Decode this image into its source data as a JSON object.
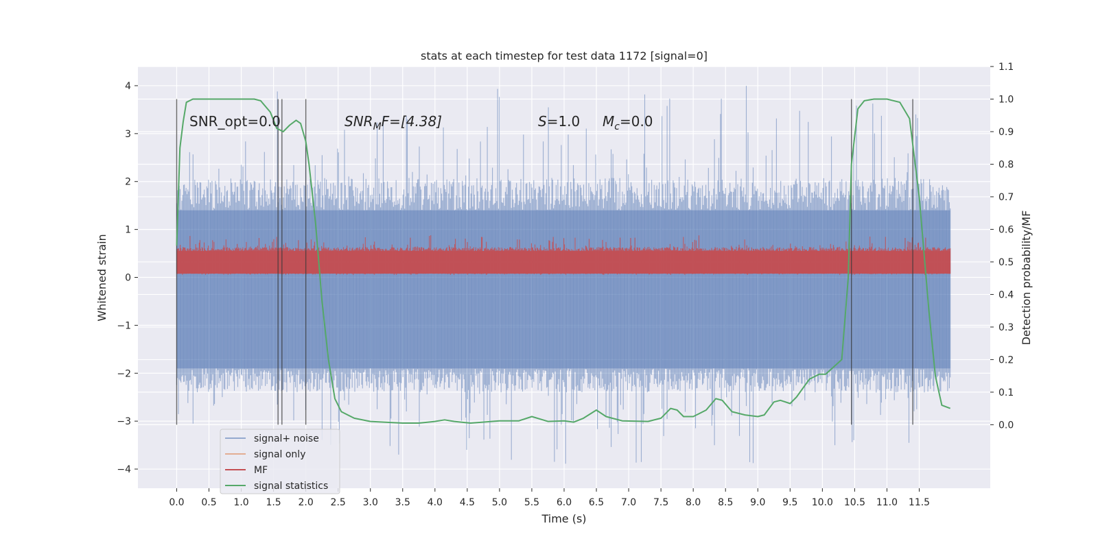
{
  "chart_data": {
    "type": "line",
    "title": "stats at each timestep for test data 1172 [signal=0]",
    "xlabel": "Time (s)",
    "ylabel": "Whitened strain",
    "ylabel_right": "Detection probability/MF",
    "xlim": [
      -0.6,
      12.6
    ],
    "ylim": [
      -4.4,
      4.4
    ],
    "ylim_right": [
      -0.195,
      1.1
    ],
    "x_ticks": [
      "0.0",
      "0.5",
      "1.0",
      "1.5",
      "2.0",
      "2.5",
      "3.0",
      "3.5",
      "4.0",
      "4.5",
      "5.0",
      "5.5",
      "6.0",
      "6.5",
      "7.0",
      "7.5",
      "8.0",
      "8.5",
      "9.0",
      "9.5",
      "10.0",
      "10.5",
      "11.0",
      "11.5"
    ],
    "y_ticks": [
      "4",
      "3",
      "2",
      "1",
      "0",
      "−1",
      "−2",
      "−3",
      "−4"
    ],
    "y_ticks_right": [
      "1.1",
      "1.0",
      "0.9",
      "0.8",
      "0.7",
      "0.6",
      "0.5",
      "0.4",
      "0.3",
      "0.2",
      "0.1",
      "0.0"
    ],
    "grid": true,
    "legend_position": "lower-left",
    "annotations": {
      "snr_opt": "SNR_opt=0.0",
      "snr_mf_var": "SNR",
      "snr_mf_sub": "M",
      "snr_mf_rest": "F=[4.38]",
      "s_var": "S",
      "s_rest": "=1.0",
      "mc_var": "M",
      "mc_sub": "c",
      "mc_rest": "=0.0"
    },
    "vertical_markers": [
      0.0,
      1.57,
      1.63,
      2.0,
      10.45,
      11.4
    ],
    "series": [
      {
        "name": "signal+ noise",
        "color": "#4c72b0",
        "style": "noise-band",
        "x_range": [
          0.0,
          11.98
        ],
        "core_band": [
          -1.9,
          1.4
        ],
        "spike_range": [
          -3.9,
          4.1
        ]
      },
      {
        "name": "signal only",
        "color": "#dd8452",
        "style": "line",
        "x": [],
        "y": []
      },
      {
        "name": "MF",
        "color": "#c44e52",
        "style": "noise-band",
        "x_range": [
          0.0,
          11.98
        ],
        "core_band": [
          0.08,
          0.55
        ],
        "spike_range": [
          0.05,
          0.88
        ]
      },
      {
        "name": "signal statistics",
        "color": "#55a868",
        "style": "line",
        "axis": "right",
        "x": [
          0.0,
          0.05,
          0.1,
          0.15,
          0.25,
          0.4,
          0.6,
          1.0,
          1.2,
          1.3,
          1.45,
          1.55,
          1.65,
          1.75,
          1.85,
          1.92,
          2.0,
          2.05,
          2.15,
          2.25,
          2.35,
          2.45,
          2.55,
          2.75,
          3.0,
          3.5,
          3.75,
          4.0,
          4.15,
          4.3,
          4.55,
          5.0,
          5.3,
          5.5,
          5.75,
          6.0,
          6.15,
          6.3,
          6.5,
          6.65,
          6.9,
          7.3,
          7.5,
          7.65,
          7.75,
          7.85,
          8.0,
          8.2,
          8.35,
          8.45,
          8.6,
          8.8,
          9.0,
          9.1,
          9.25,
          9.35,
          9.5,
          9.6,
          9.8,
          9.95,
          10.05,
          10.3,
          10.4,
          10.45,
          10.55,
          10.65,
          10.8,
          11.0,
          11.2,
          11.35,
          11.5,
          11.65,
          11.75,
          11.85,
          11.98
        ],
        "y": [
          0.55,
          0.85,
          0.93,
          0.99,
          1.0,
          1.0,
          1.0,
          1.0,
          1.0,
          0.995,
          0.96,
          0.91,
          0.9,
          0.92,
          0.935,
          0.925,
          0.87,
          0.8,
          0.62,
          0.38,
          0.2,
          0.08,
          0.04,
          0.02,
          0.01,
          0.005,
          0.005,
          0.01,
          0.015,
          0.01,
          0.005,
          0.012,
          0.012,
          0.025,
          0.01,
          0.012,
          0.008,
          0.02,
          0.045,
          0.025,
          0.012,
          0.01,
          0.02,
          0.05,
          0.045,
          0.025,
          0.025,
          0.045,
          0.08,
          0.075,
          0.04,
          0.03,
          0.025,
          0.03,
          0.07,
          0.075,
          0.065,
          0.085,
          0.14,
          0.155,
          0.155,
          0.2,
          0.45,
          0.8,
          0.97,
          0.995,
          1.0,
          1.0,
          0.99,
          0.94,
          0.7,
          0.35,
          0.15,
          0.06,
          0.05
        ]
      }
    ]
  }
}
